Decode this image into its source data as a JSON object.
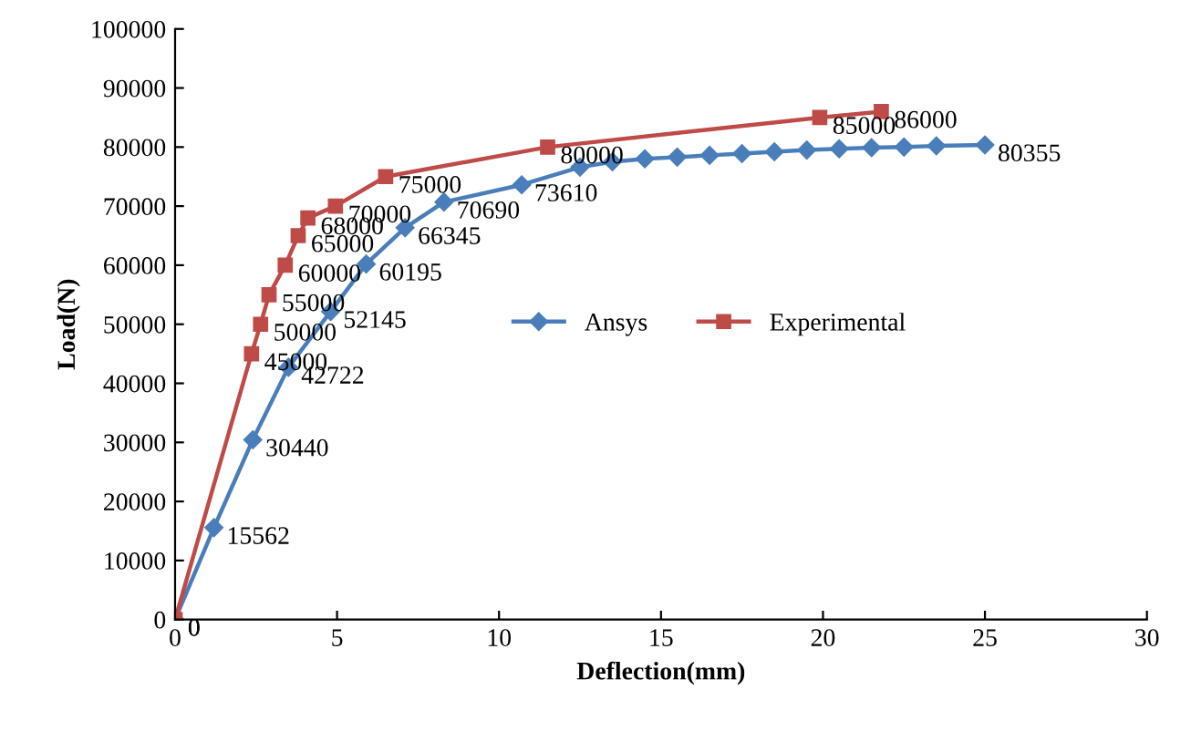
{
  "chart_data": {
    "type": "line",
    "xlabel": "Deflection(mm)",
    "ylabel": "Load(N)",
    "xlim": [
      0,
      30
    ],
    "xticks": [
      0,
      5,
      10,
      15,
      20,
      25,
      30
    ],
    "ylim": [
      0,
      100000
    ],
    "yticks": [
      0,
      10000,
      20000,
      30000,
      40000,
      50000,
      60000,
      70000,
      80000,
      90000,
      100000
    ],
    "grid": false,
    "legend": "center",
    "series": [
      {
        "name": "Ansys",
        "color": "#4a7ebb",
        "marker": "diamond",
        "x": [
          0,
          1.2,
          2.4,
          3.5,
          4.8,
          5.9,
          7.1,
          8.3,
          10.7,
          12.5,
          13.5,
          14.5,
          15.5,
          16.5,
          17.5,
          18.5,
          19.5,
          20.5,
          21.5,
          22.5,
          23.5,
          25
        ],
        "values": [
          0,
          15562,
          30440,
          42722,
          52145,
          60195,
          66345,
          70690,
          73610,
          76600,
          77500,
          78000,
          78300,
          78600,
          78900,
          79200,
          79500,
          79700,
          79900,
          80000,
          80200,
          80355
        ],
        "value_labels": [
          "0",
          "15562",
          "30440",
          "42722",
          "52145",
          "60195",
          "66345",
          "70690",
          "73610",
          null,
          null,
          null,
          null,
          null,
          null,
          null,
          null,
          null,
          null,
          null,
          null,
          "80355"
        ]
      },
      {
        "name": "Experimental",
        "color": "#be4b48",
        "marker": "square",
        "x": [
          0,
          2.36,
          2.64,
          2.9,
          3.4,
          3.8,
          4.1,
          4.95,
          6.5,
          11.5,
          19.9,
          21.8
        ],
        "values": [
          0,
          45000,
          50000,
          55000,
          60000,
          65000,
          68000,
          70000,
          75000,
          80000,
          85000,
          86000
        ],
        "value_labels": [
          "0",
          "45000",
          "50000",
          "55000",
          "60000",
          "65000",
          "68000",
          "70000",
          "75000",
          "80000",
          "85000",
          "86000"
        ]
      }
    ]
  }
}
